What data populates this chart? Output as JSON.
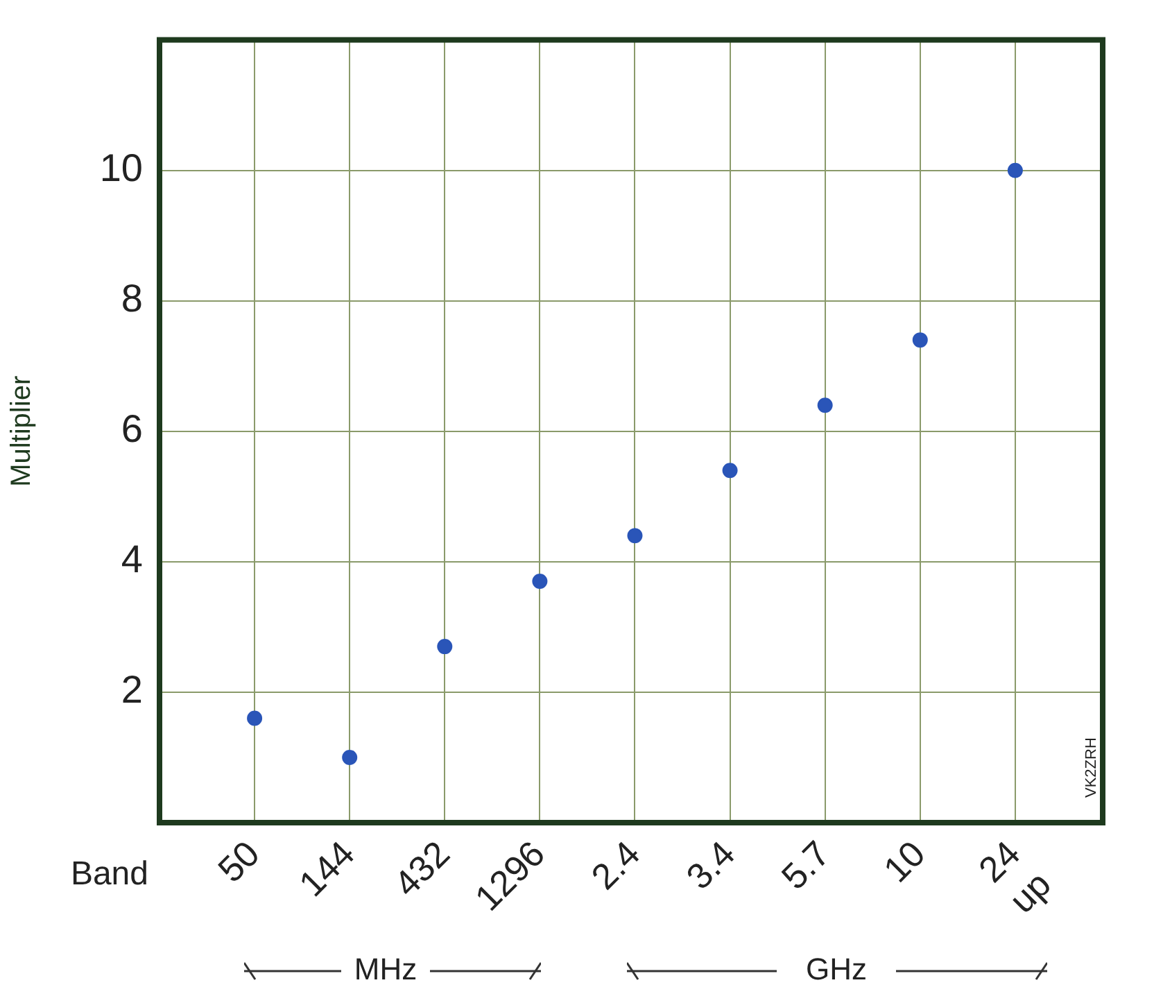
{
  "chart_data": {
    "type": "scatter",
    "xlabel": "Band",
    "ylabel": "Multiplier",
    "categories": [
      "50",
      "144",
      "432",
      "1296",
      "2.4",
      "3.4",
      "5.7",
      "10",
      "24\nup"
    ],
    "values": [
      1.6,
      1.0,
      2.7,
      3.7,
      4.4,
      5.4,
      6.4,
      7.4,
      10
    ],
    "color": "#2a55b8",
    "marker": "circle",
    "ylim": [
      0,
      12
    ],
    "yticks": [
      2,
      4,
      6,
      8,
      10
    ],
    "grid": true,
    "legend": false,
    "annotations": [
      "MHz",
      "GHz",
      "VK2ZRH"
    ]
  }
}
